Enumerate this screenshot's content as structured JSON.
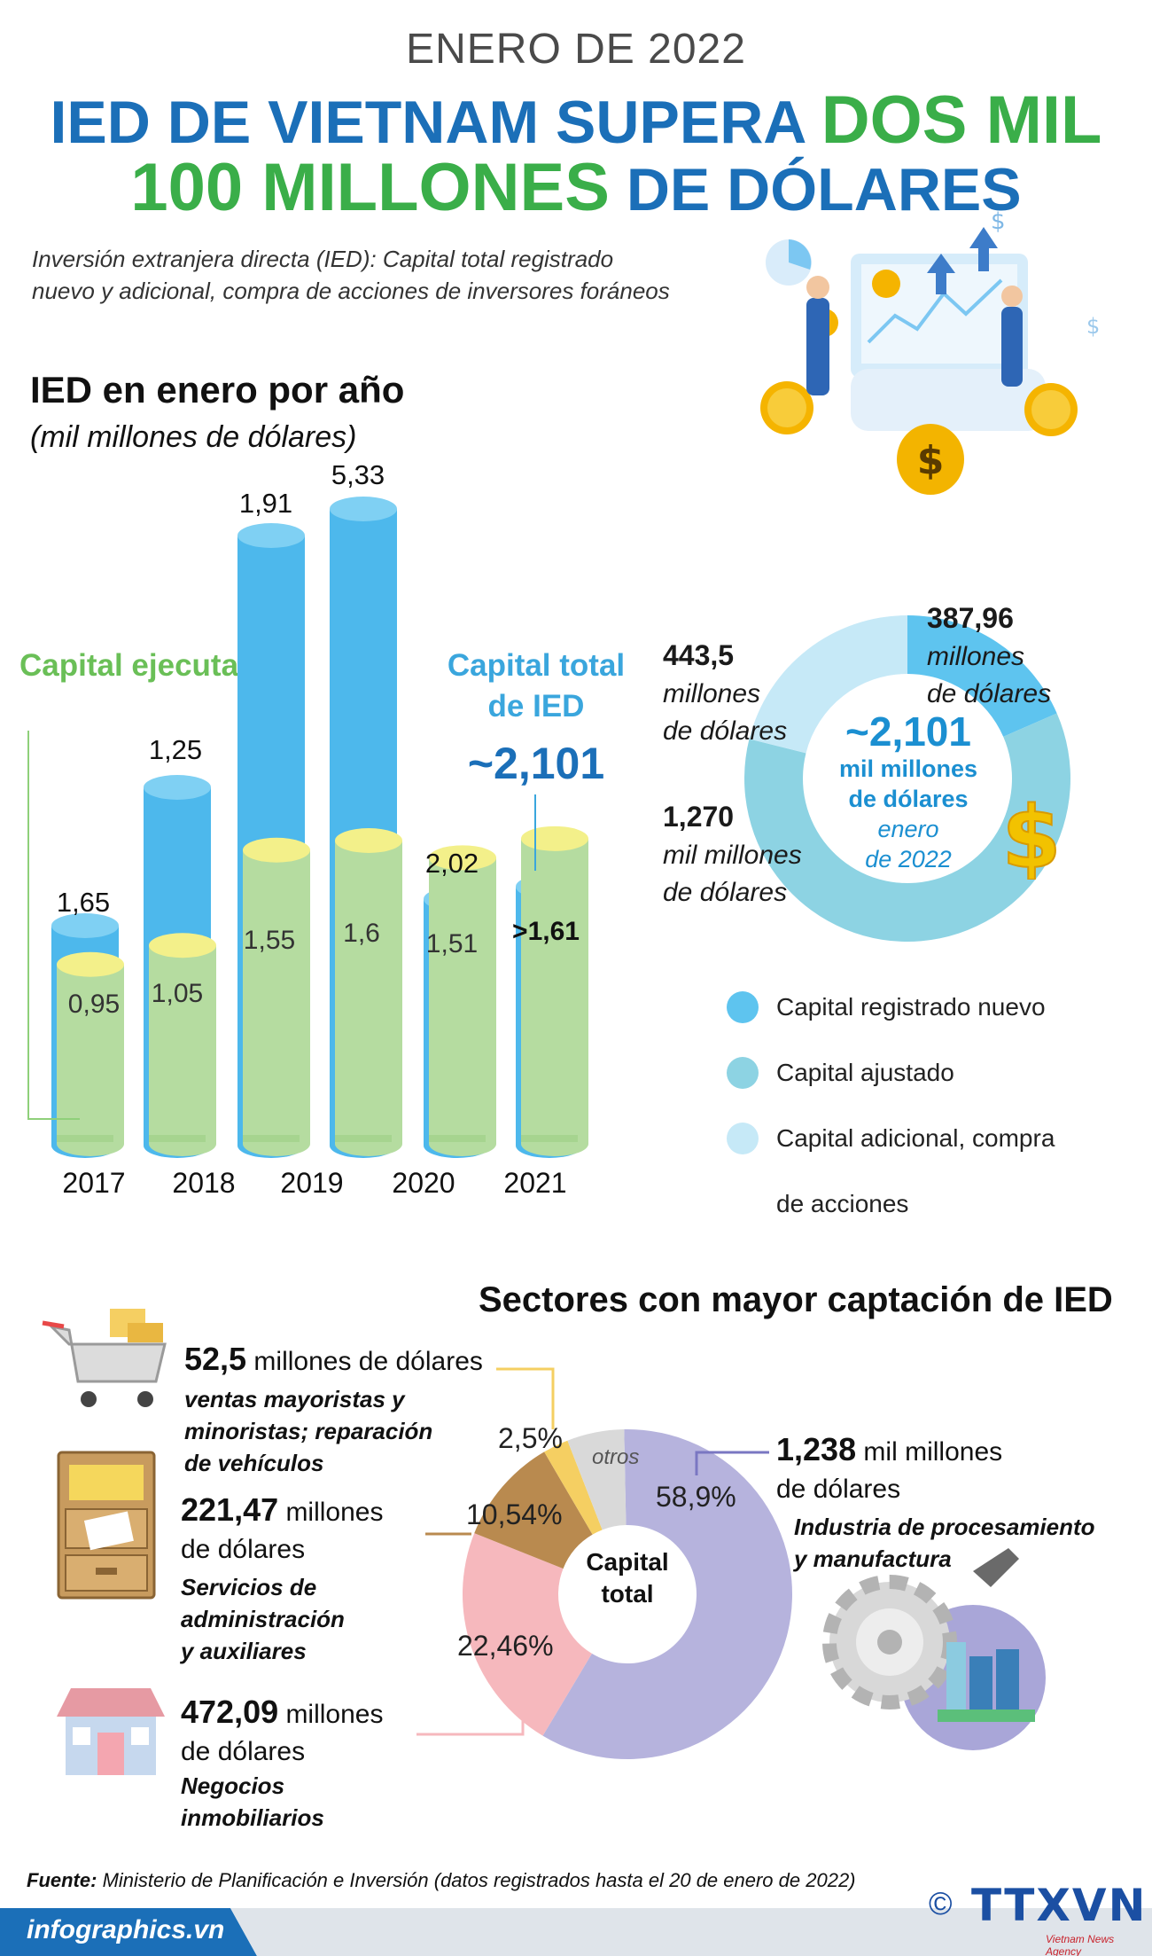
{
  "header": {
    "kicker": "ENERO DE 2022",
    "title_line1_a": "IED DE VIETNAM SUPERA ",
    "title_line1_b": "DOS MIL",
    "title_line2_a": "100 MILLONES",
    "title_line2_b": " DE DÓLARES",
    "subtitle_1": "Inversión extranjera directa (IED):  Capital total registrado",
    "subtitle_2": "nuevo y adicional, compra de acciones de inversores foráneos"
  },
  "colors": {
    "blue_bar": "#4db8ec",
    "green_bar": "#b5dca0",
    "yellow": "#f3f08a",
    "new_capital": "#5ec4ef",
    "adjusted_capital": "#8dd3e3",
    "additional_capital": "#c6e9f7",
    "manufacturing": "#b6b3dd",
    "real_estate": "#f6b8bd",
    "services": "#b98a4f",
    "retail": "#f5cf62",
    "others": "#d9d9d9",
    "footer": "#1b6fb8"
  },
  "chart_data": [
    {
      "type": "bar",
      "title": "IED en enero por año",
      "subtitle": "(mil millones de dólares)",
      "categories": [
        "2017",
        "2018",
        "2019",
        "2020",
        "2021"
      ],
      "series": [
        {
          "name": "Capital total de IED",
          "values": [
            1.65,
            1.25,
            1.91,
            5.33,
            2.02
          ],
          "labels": [
            "1,65",
            "1,25",
            "1,91",
            "5,33",
            "2,02"
          ]
        },
        {
          "name": "Capital ejecutado",
          "values": [
            0.95,
            1.05,
            1.55,
            1.6,
            1.51
          ],
          "labels": [
            "0,95",
            "1,05",
            "1,55",
            "1,6",
            "1,51"
          ]
        }
      ],
      "extra_bar": {
        "total_label": "Capital total de IED",
        "total_value": "~2,101",
        "executed_prefix": ">",
        "executed_label": "1,61",
        "executed_value": 1.61
      },
      "executed_legend_label": "Capital ejecutado"
    },
    {
      "type": "pie",
      "title": "~2,101 mil millones de dólares enero de 2022",
      "slices": [
        {
          "name": "Capital registrado nuevo",
          "value": 387.96,
          "label_value": "387,96",
          "label_unit": "millones de dólares"
        },
        {
          "name": "Capital ajustado",
          "value": 1270,
          "label_value": "1,270",
          "label_unit": "mil millones de dólares"
        },
        {
          "name": "Capital adicional, compra de acciones",
          "value": 443.5,
          "label_value": "443,5",
          "label_unit": "millones de dólares"
        }
      ]
    },
    {
      "type": "pie",
      "title": "Sectores con mayor captación de IED",
      "center_label_1": "Capital",
      "center_label_2": "total",
      "slices": [
        {
          "name": "Industria de procesamiento y manufactura",
          "value": 58.9,
          "label": "58,9%"
        },
        {
          "name": "Negocios inmobiliarios",
          "value": 22.46,
          "label": "22,46%"
        },
        {
          "name": "Servicios de administración y auxiliares",
          "value": 10.54,
          "label": "10,54%"
        },
        {
          "name": "ventas mayoristas y minoristas; reparación de vehículos",
          "value": 2.5,
          "label": "2,5%"
        },
        {
          "name": "otros",
          "value": 5.6,
          "label": "otros"
        }
      ]
    }
  ],
  "donut1": {
    "center_value": "~2,101",
    "center_unit_1": "mil millones",
    "center_unit_2": "de dólares",
    "center_period_1": "enero",
    "center_period_2": "de 2022",
    "label_new_value": "387,96",
    "label_new_unit_1": "millones",
    "label_new_unit_2": "de dólares",
    "label_add_value": "443,5",
    "label_add_unit_1": "millones",
    "label_add_unit_2": "de dólares",
    "label_adj_value": "1,270",
    "label_adj_unit_1": "mil millones",
    "label_adj_unit_2": "de dólares"
  },
  "legend": {
    "new": "Capital registrado nuevo",
    "adjusted": "Capital ajustado",
    "additional_1": "Capital adicional, compra",
    "additional_2": "de acciones"
  },
  "sectors": {
    "title": "Sectores con mayor captación de IED",
    "retail": {
      "amount": "52,5",
      "unit": " millones de dólares",
      "desc_1": "ventas mayoristas y",
      "desc_2": "minoristas; reparación",
      "desc_3": "de vehículos"
    },
    "services": {
      "amount": "221,47",
      "unit_1": " millones",
      "unit_2": "de dólares",
      "desc_1": "Servicios de",
      "desc_2": "administración",
      "desc_3": "y auxiliares"
    },
    "real_estate": {
      "amount": "472,09",
      "unit_1": "  millones",
      "unit_2": "de dólares",
      "desc_1": "Negocios",
      "desc_2": "inmobiliarios"
    },
    "manufacturing": {
      "amount": "1,238",
      "unit_1": " mil millones",
      "unit_2": "de dólares",
      "desc_1": "Industria de procesamiento",
      "desc_2": "y manufactura"
    },
    "others_label": "otros"
  },
  "footer": {
    "source_label": "Fuente:",
    "source_text": " Ministerio de Planificación e Inversión (datos registrados hasta el 20 de enero de 2022)",
    "site": "infographics.vn",
    "copyright": "©",
    "logo": "TTXVN",
    "logo_sub": "Vietnam News Agency"
  }
}
